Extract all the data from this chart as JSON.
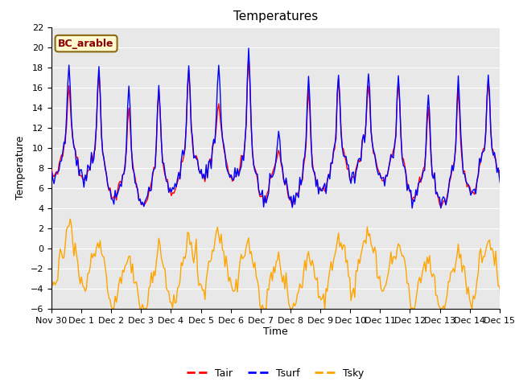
{
  "title": "Temperatures",
  "xlabel": "Time",
  "ylabel": "Temperature",
  "ylim": [
    -6,
    22
  ],
  "yticks": [
    -6,
    -4,
    -2,
    0,
    2,
    4,
    6,
    8,
    10,
    12,
    14,
    16,
    18,
    20,
    22
  ],
  "xtick_labels": [
    "Nov 30",
    "Dec 1",
    "Dec 2",
    "Dec 3",
    "Dec 4",
    "Dec 5",
    "Dec 6",
    "Dec 7",
    "Dec 8",
    "Dec 9",
    "Dec 10",
    "Dec 11",
    "Dec 12",
    "Dec 13",
    "Dec 14",
    "Dec 15"
  ],
  "n_days": 16,
  "annotation": "BC_arable",
  "annotation_color": "#8B0000",
  "annotation_bg": "#FFFACD",
  "annotation_border": "#8B6914",
  "tair_color": "#FF0000",
  "tsurf_color": "#0000FF",
  "tsky_color": "#FFA500",
  "legend_labels": [
    "Tair",
    "Tsurf",
    "Tsky"
  ],
  "bg_color": "#E8E8E8",
  "line_width": 1.0,
  "title_fontsize": 11,
  "axis_fontsize": 9,
  "tick_fontsize": 8,
  "legend_fontsize": 9
}
